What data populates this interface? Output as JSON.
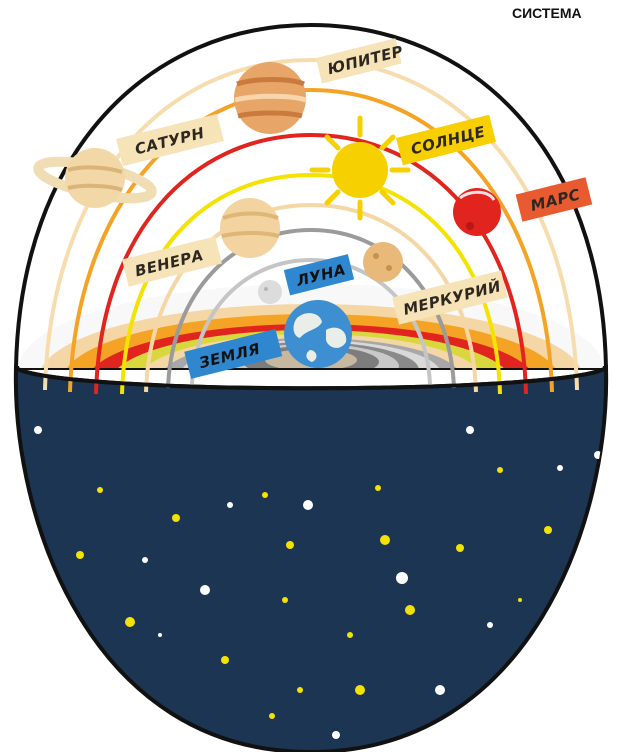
{
  "header": {
    "title_fragment": "СИСТЕМА"
  },
  "planets": {
    "jupiter": "ЮПИТЕР",
    "saturn": "САТУРН",
    "sun": "СОЛНЦЕ",
    "mars": "МАРС",
    "venus": "ВЕНЕРА",
    "moon": "ЛУНА",
    "mercury": "МЕРКУРИЙ",
    "earth": "ЗЕМЛЯ"
  },
  "colors": {
    "sky": "#1c3553",
    "earth_water": "#3d8fd1",
    "sun": "#f7d000",
    "mars": "#e2241f",
    "label_beige": "#f6e3b7",
    "label_yellow": "#f8cf00",
    "label_orange": "#e85a2f",
    "label_blue": "#2f88cf"
  }
}
